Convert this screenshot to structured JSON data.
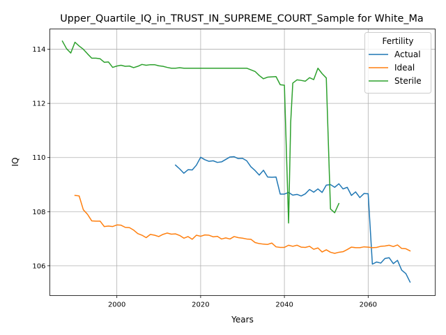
{
  "chart_data": {
    "type": "line",
    "title": "Upper_Quartile_IQ_in_TRUST_IN_SUPREME_COURT_Sample for White_Ma",
    "xlabel": "Years",
    "ylabel": "IQ",
    "xlim": [
      1984,
      2076
    ],
    "ylim": [
      104.9,
      114.75
    ],
    "xticks": [
      2000,
      2020,
      2040,
      2060
    ],
    "yticks": [
      106,
      108,
      110,
      112,
      114
    ],
    "grid": true,
    "legend": {
      "title": "Fertility",
      "placement": "upper right"
    },
    "series": [
      {
        "name": "Actual",
        "color": "#1f77b4",
        "points": [
          [
            2014,
            109.72
          ],
          [
            2015,
            109.58
          ],
          [
            2016,
            109.42
          ],
          [
            2017,
            109.55
          ],
          [
            2018,
            109.54
          ],
          [
            2019,
            109.72
          ],
          [
            2020,
            110.01
          ],
          [
            2021,
            109.92
          ],
          [
            2022,
            109.86
          ],
          [
            2023,
            109.88
          ],
          [
            2024,
            109.82
          ],
          [
            2025,
            109.84
          ],
          [
            2026,
            109.93
          ],
          [
            2027,
            110.02
          ],
          [
            2028,
            110.03
          ],
          [
            2029,
            109.96
          ],
          [
            2030,
            109.97
          ],
          [
            2031,
            109.88
          ],
          [
            2032,
            109.66
          ],
          [
            2033,
            109.52
          ],
          [
            2034,
            109.35
          ],
          [
            2035,
            109.53
          ],
          [
            2036,
            109.28
          ],
          [
            2037,
            109.27
          ],
          [
            2038,
            109.28
          ],
          [
            2039,
            108.65
          ],
          [
            2040,
            108.65
          ],
          [
            2041,
            108.71
          ],
          [
            2042,
            108.61
          ],
          [
            2043,
            108.64
          ],
          [
            2044,
            108.58
          ],
          [
            2045,
            108.66
          ],
          [
            2046,
            108.82
          ],
          [
            2047,
            108.72
          ],
          [
            2048,
            108.84
          ],
          [
            2049,
            108.71
          ],
          [
            2050,
            108.98
          ],
          [
            2051,
            109.0
          ],
          [
            2052,
            108.9
          ],
          [
            2053,
            109.03
          ],
          [
            2054,
            108.84
          ],
          [
            2055,
            108.9
          ],
          [
            2056,
            108.6
          ],
          [
            2057,
            108.73
          ],
          [
            2058,
            108.52
          ],
          [
            2059,
            108.67
          ],
          [
            2060,
            108.66
          ],
          [
            2061,
            106.06
          ],
          [
            2062,
            106.14
          ],
          [
            2063,
            106.1
          ],
          [
            2064,
            106.27
          ],
          [
            2065,
            106.3
          ],
          [
            2066,
            106.08
          ],
          [
            2067,
            106.2
          ],
          [
            2068,
            105.84
          ],
          [
            2069,
            105.71
          ],
          [
            2070,
            105.4
          ]
        ]
      },
      {
        "name": "Ideal",
        "color": "#ff7f0e",
        "points": [
          [
            1990,
            108.6
          ],
          [
            1991,
            108.58
          ],
          [
            1992,
            108.07
          ],
          [
            1993,
            107.9
          ],
          [
            1994,
            107.66
          ],
          [
            1995,
            107.65
          ],
          [
            1996,
            107.65
          ],
          [
            1997,
            107.45
          ],
          [
            1998,
            107.47
          ],
          [
            1999,
            107.45
          ],
          [
            2000,
            107.51
          ],
          [
            2001,
            107.5
          ],
          [
            2002,
            107.42
          ],
          [
            2003,
            107.41
          ],
          [
            2004,
            107.32
          ],
          [
            2005,
            107.19
          ],
          [
            2006,
            107.13
          ],
          [
            2007,
            107.04
          ],
          [
            2008,
            107.16
          ],
          [
            2009,
            107.13
          ],
          [
            2010,
            107.08
          ],
          [
            2011,
            107.16
          ],
          [
            2012,
            107.21
          ],
          [
            2013,
            107.17
          ],
          [
            2014,
            107.18
          ],
          [
            2015,
            107.12
          ],
          [
            2016,
            107.02
          ],
          [
            2017,
            107.08
          ],
          [
            2018,
            106.98
          ],
          [
            2019,
            107.13
          ],
          [
            2020,
            107.09
          ],
          [
            2021,
            107.14
          ],
          [
            2022,
            107.13
          ],
          [
            2023,
            107.07
          ],
          [
            2024,
            107.09
          ],
          [
            2025,
            106.99
          ],
          [
            2026,
            107.03
          ],
          [
            2027,
            106.99
          ],
          [
            2028,
            107.08
          ],
          [
            2029,
            107.04
          ],
          [
            2030,
            107.02
          ],
          [
            2031,
            106.99
          ],
          [
            2032,
            106.98
          ],
          [
            2033,
            106.86
          ],
          [
            2034,
            106.82
          ],
          [
            2035,
            106.8
          ],
          [
            2036,
            106.79
          ],
          [
            2037,
            106.84
          ],
          [
            2038,
            106.7
          ],
          [
            2039,
            106.68
          ],
          [
            2040,
            106.68
          ],
          [
            2041,
            106.76
          ],
          [
            2042,
            106.72
          ],
          [
            2043,
            106.76
          ],
          [
            2044,
            106.69
          ],
          [
            2045,
            106.68
          ],
          [
            2046,
            106.72
          ],
          [
            2047,
            106.61
          ],
          [
            2048,
            106.66
          ],
          [
            2049,
            106.51
          ],
          [
            2050,
            106.59
          ],
          [
            2051,
            106.5
          ],
          [
            2052,
            106.46
          ],
          [
            2053,
            106.5
          ],
          [
            2054,
            106.52
          ],
          [
            2055,
            106.6
          ],
          [
            2056,
            106.69
          ],
          [
            2057,
            106.67
          ],
          [
            2058,
            106.67
          ],
          [
            2059,
            106.7
          ],
          [
            2060,
            106.69
          ],
          [
            2061,
            106.67
          ],
          [
            2062,
            106.68
          ],
          [
            2063,
            106.72
          ],
          [
            2064,
            106.73
          ],
          [
            2065,
            106.76
          ],
          [
            2066,
            106.71
          ],
          [
            2067,
            106.77
          ],
          [
            2068,
            106.64
          ],
          [
            2069,
            106.63
          ],
          [
            2070,
            106.55
          ]
        ]
      },
      {
        "name": "Sterile",
        "color": "#2ca02c",
        "points": [
          [
            1987,
            114.3
          ],
          [
            1988,
            114.02
          ],
          [
            1989,
            113.86
          ],
          [
            1990,
            114.26
          ],
          [
            1991,
            114.12
          ],
          [
            1992,
            114.0
          ],
          [
            1993,
            113.83
          ],
          [
            1994,
            113.67
          ],
          [
            1995,
            113.67
          ],
          [
            1996,
            113.65
          ],
          [
            1997,
            113.52
          ],
          [
            1998,
            113.53
          ],
          [
            1999,
            113.33
          ],
          [
            2000,
            113.38
          ],
          [
            2001,
            113.41
          ],
          [
            2002,
            113.37
          ],
          [
            2003,
            113.38
          ],
          [
            2004,
            113.32
          ],
          [
            2005,
            113.37
          ],
          [
            2006,
            113.44
          ],
          [
            2007,
            113.41
          ],
          [
            2008,
            113.43
          ],
          [
            2009,
            113.43
          ],
          [
            2010,
            113.39
          ],
          [
            2011,
            113.37
          ],
          [
            2012,
            113.33
          ],
          [
            2013,
            113.3
          ],
          [
            2014,
            113.3
          ],
          [
            2015,
            113.32
          ],
          [
            2016,
            113.3
          ],
          [
            2017,
            113.3
          ],
          [
            2018,
            113.3
          ],
          [
            2019,
            113.3
          ],
          [
            2020,
            113.3
          ],
          [
            2021,
            113.3
          ],
          [
            2022,
            113.3
          ],
          [
            2023,
            113.3
          ],
          [
            2024,
            113.3
          ],
          [
            2025,
            113.3
          ],
          [
            2026,
            113.3
          ],
          [
            2027,
            113.3
          ],
          [
            2028,
            113.3
          ],
          [
            2029,
            113.3
          ],
          [
            2030,
            113.3
          ],
          [
            2031,
            113.3
          ],
          [
            2032,
            113.24
          ],
          [
            2033,
            113.18
          ],
          [
            2034,
            113.03
          ],
          [
            2035,
            112.91
          ],
          [
            2036,
            112.97
          ],
          [
            2037,
            112.98
          ],
          [
            2038,
            112.99
          ],
          [
            2039,
            112.69
          ],
          [
            2040,
            112.67
          ],
          [
            2041,
            107.58
          ],
          [
            2041.5,
            111.3
          ],
          [
            2042,
            112.75
          ],
          [
            2043,
            112.87
          ],
          [
            2044,
            112.85
          ],
          [
            2045,
            112.82
          ],
          [
            2046,
            112.95
          ],
          [
            2047,
            112.88
          ],
          [
            2048,
            113.3
          ],
          [
            2049,
            113.1
          ],
          [
            2050,
            112.94
          ],
          [
            2051,
            108.1
          ],
          [
            2052,
            107.96
          ],
          [
            2053,
            108.3
          ]
        ]
      }
    ]
  }
}
